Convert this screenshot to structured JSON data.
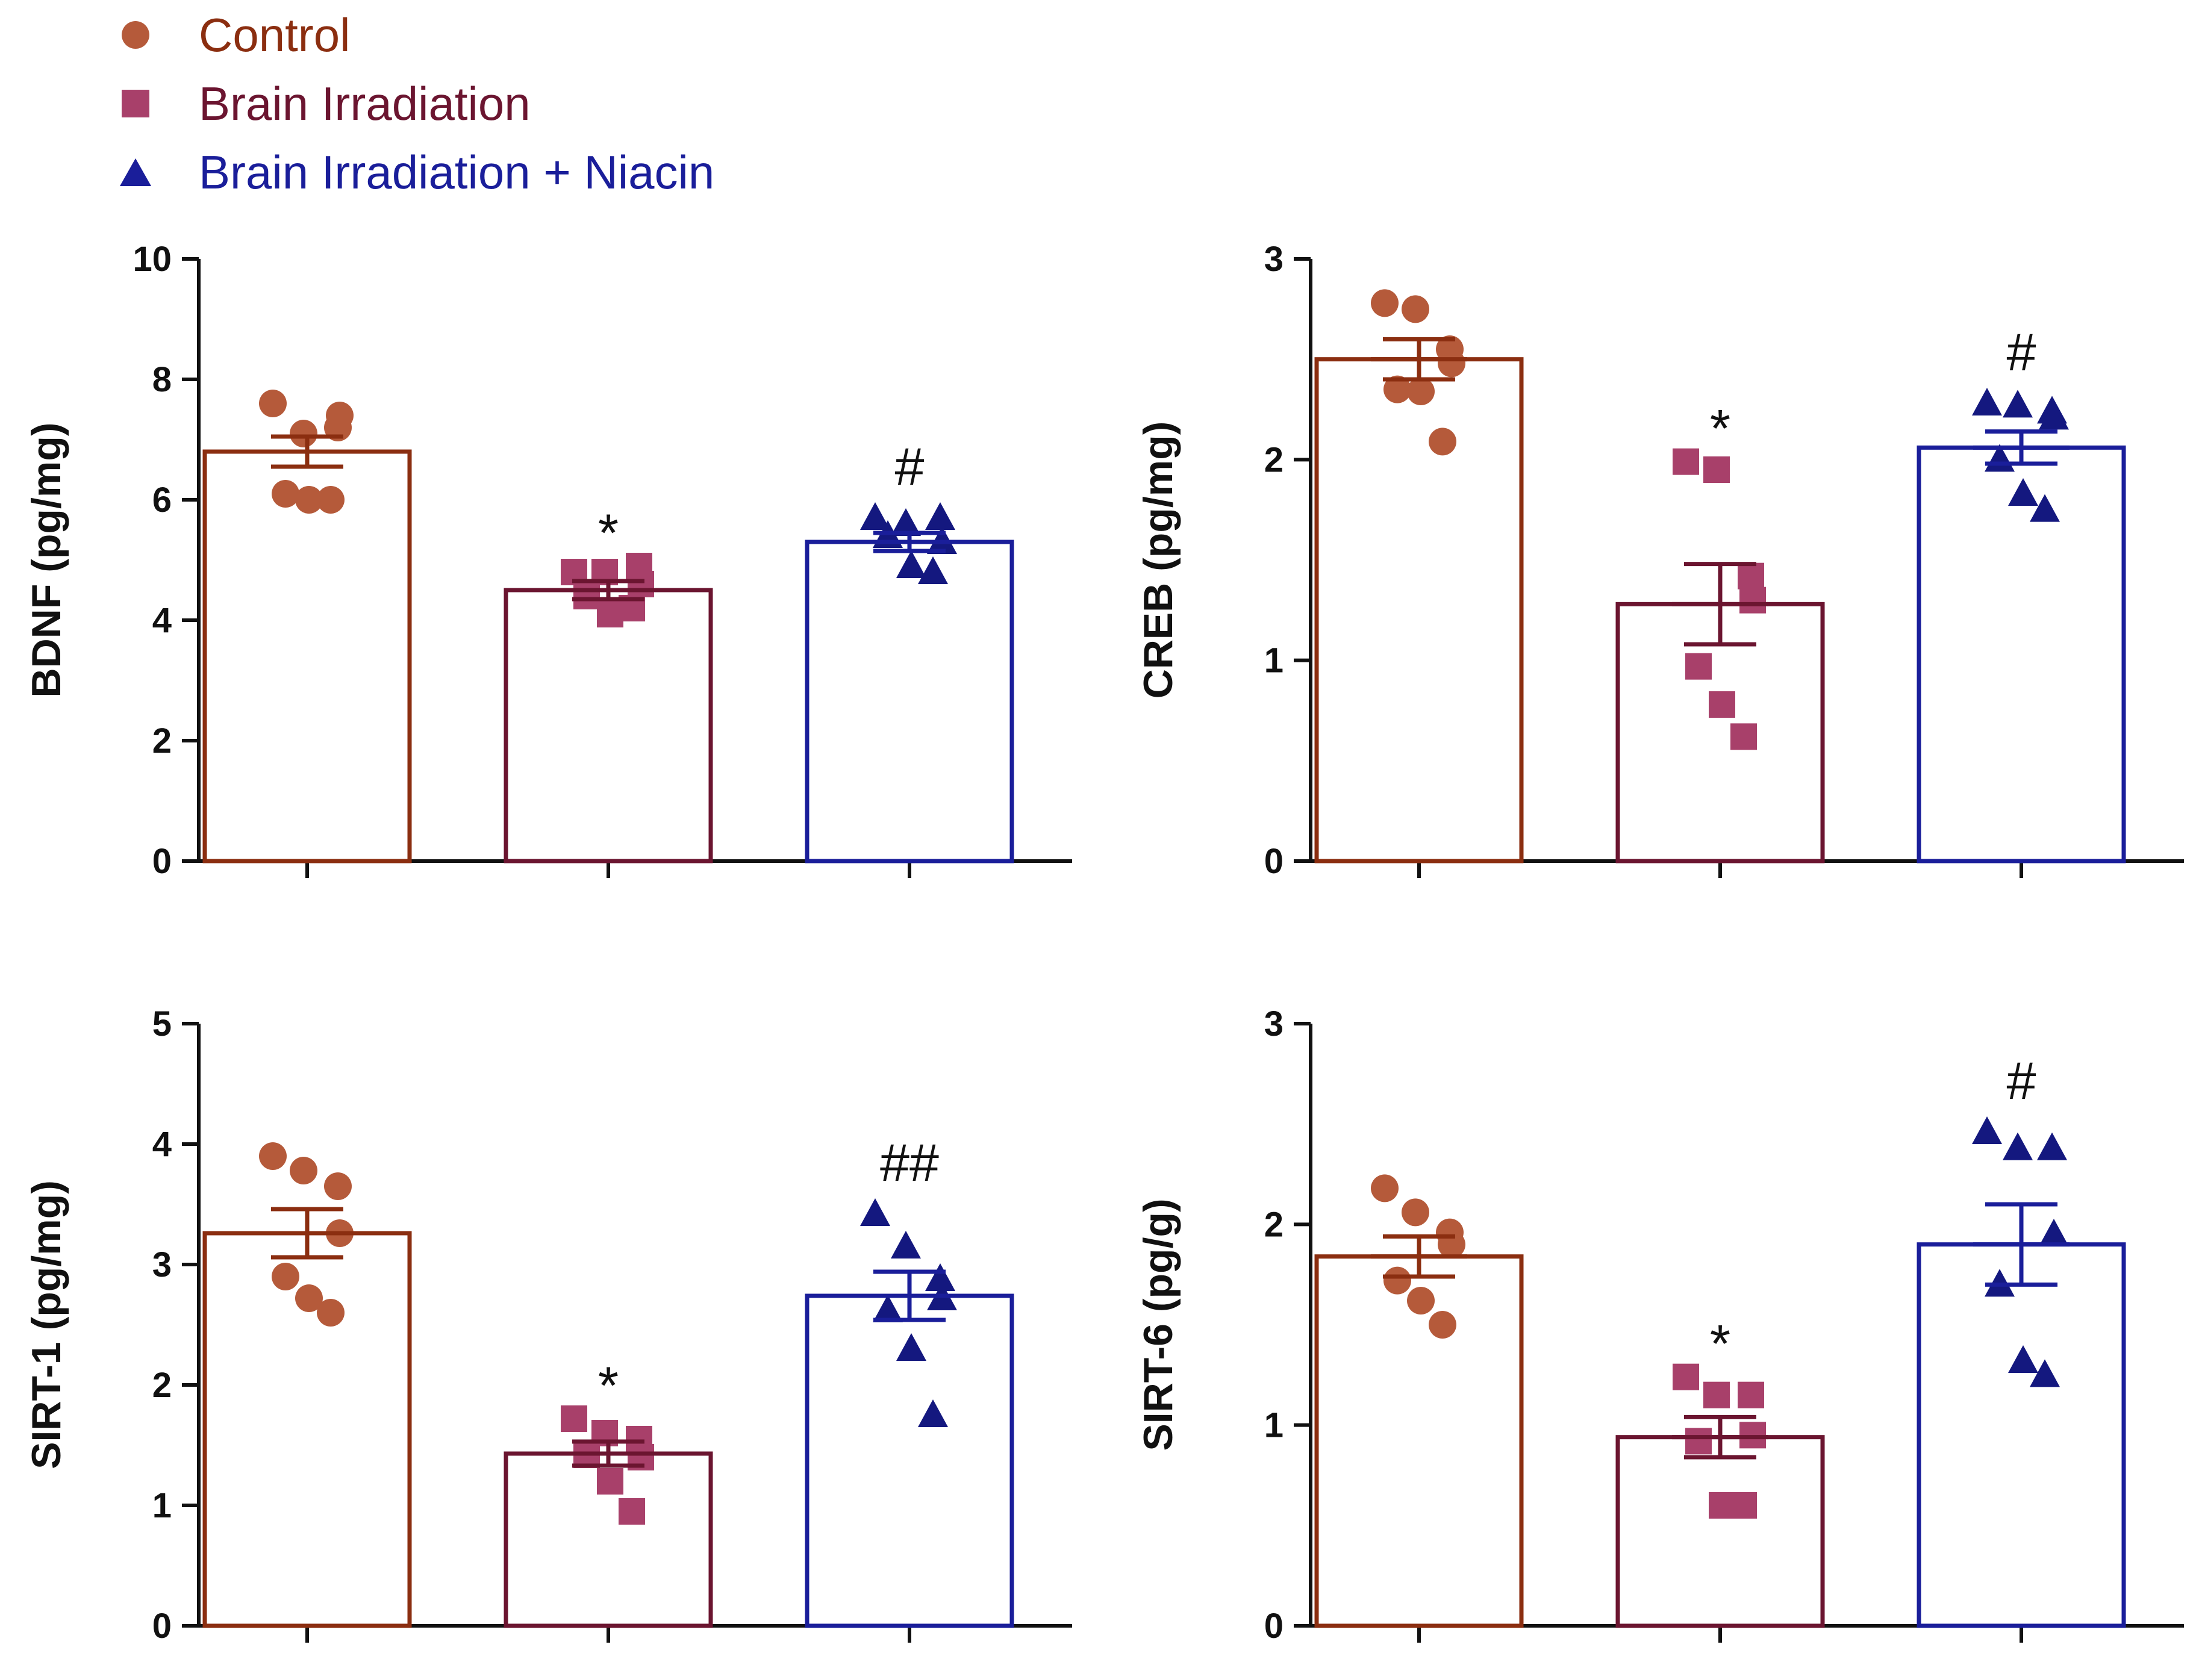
{
  "legend": [
    {
      "label": "Control",
      "marker": "circle",
      "color": "#B55A3A"
    },
    {
      "label": "Brain Irradiation",
      "marker": "square",
      "color": "#A8406A"
    },
    {
      "label": "Brain Irradiation + Niacin",
      "marker": "triangle",
      "color": "#1A1E9A"
    }
  ],
  "colors": {
    "control_bar": "#8B2E10",
    "ir_bar": "#6B1530",
    "niacin_bar": "#1A1E9A",
    "control_point": "#B55A3A",
    "ir_point": "#A8406A",
    "niacin_point": "#14187F",
    "axis": "#111111"
  },
  "chart_data": [
    {
      "type": "bar",
      "ylabel": "BDNF (pg/mg)",
      "ylim": [
        0,
        10
      ],
      "yticks": [
        "0",
        "2",
        "4",
        "6",
        "8",
        "10"
      ],
      "categories": [
        "Control",
        "Brain Irradiation",
        "Brain Irradiation + Niacin"
      ],
      "values": [
        6.8,
        4.5,
        5.3
      ],
      "sem": [
        0.25,
        0.15,
        0.15
      ],
      "points": [
        [
          7.6,
          7.1,
          7.2,
          7.4,
          6.1,
          6.0,
          6.0
        ],
        [
          4.8,
          4.8,
          4.9,
          4.6,
          4.4,
          4.1,
          4.2
        ],
        [
          5.7,
          5.6,
          5.7,
          5.3,
          5.4,
          4.9,
          4.8
        ]
      ],
      "significance": [
        "",
        "*",
        "#"
      ]
    },
    {
      "type": "bar",
      "ylabel": "CREB (pg/mg)",
      "ylim": [
        0,
        3
      ],
      "yticks": [
        "0",
        "1",
        "2",
        "3"
      ],
      "categories": [
        "Control",
        "Brain Irradiation",
        "Brain Irradiation + Niacin"
      ],
      "values": [
        2.5,
        1.28,
        2.06
      ],
      "sem": [
        0.1,
        0.2,
        0.08
      ],
      "points": [
        [
          2.78,
          2.75,
          2.55,
          2.48,
          2.35,
          2.34,
          2.09
        ],
        [
          1.99,
          1.95,
          1.42,
          1.3,
          0.97,
          0.78,
          0.62
        ],
        [
          2.28,
          2.27,
          2.24,
          2.21,
          2.0,
          1.83,
          1.75
        ]
      ],
      "significance": [
        "",
        "*",
        "#"
      ]
    },
    {
      "type": "bar",
      "ylabel": "SIRT-1 (pg/mg)",
      "ylim": [
        0,
        5
      ],
      "yticks": [
        "0",
        "1",
        "2",
        "3",
        "4",
        "5"
      ],
      "categories": [
        "Control",
        "Brain Irradiation",
        "Brain Irradiation + Niacin"
      ],
      "values": [
        3.26,
        1.43,
        2.74
      ],
      "sem": [
        0.2,
        0.1,
        0.2
      ],
      "points": [
        [
          3.9,
          3.78,
          3.65,
          3.26,
          2.9,
          2.72,
          2.6
        ],
        [
          1.72,
          1.6,
          1.55,
          1.4,
          1.42,
          1.2,
          0.95
        ],
        [
          3.42,
          3.15,
          2.88,
          2.72,
          2.62,
          2.3,
          1.75
        ]
      ],
      "significance": [
        "",
        "*",
        "##"
      ]
    },
    {
      "type": "bar",
      "ylabel": "SIRT-6 (pg/g)",
      "ylim": [
        0,
        3
      ],
      "yticks": [
        "0",
        "1",
        "2",
        "3"
      ],
      "categories": [
        "Control",
        "Brain Irradiation",
        "Brain Irradiation + Niacin"
      ],
      "values": [
        1.84,
        0.94,
        1.9
      ],
      "sem": [
        0.1,
        0.1,
        0.2
      ],
      "points": [
        [
          2.18,
          2.06,
          1.96,
          1.9,
          1.72,
          1.62,
          1.5
        ],
        [
          1.24,
          1.15,
          1.15,
          0.95,
          0.92,
          0.6,
          0.6
        ],
        [
          2.46,
          2.38,
          2.38,
          1.95,
          1.7,
          1.32,
          1.25
        ]
      ],
      "significance": [
        "",
        "*",
        "#"
      ]
    }
  ]
}
